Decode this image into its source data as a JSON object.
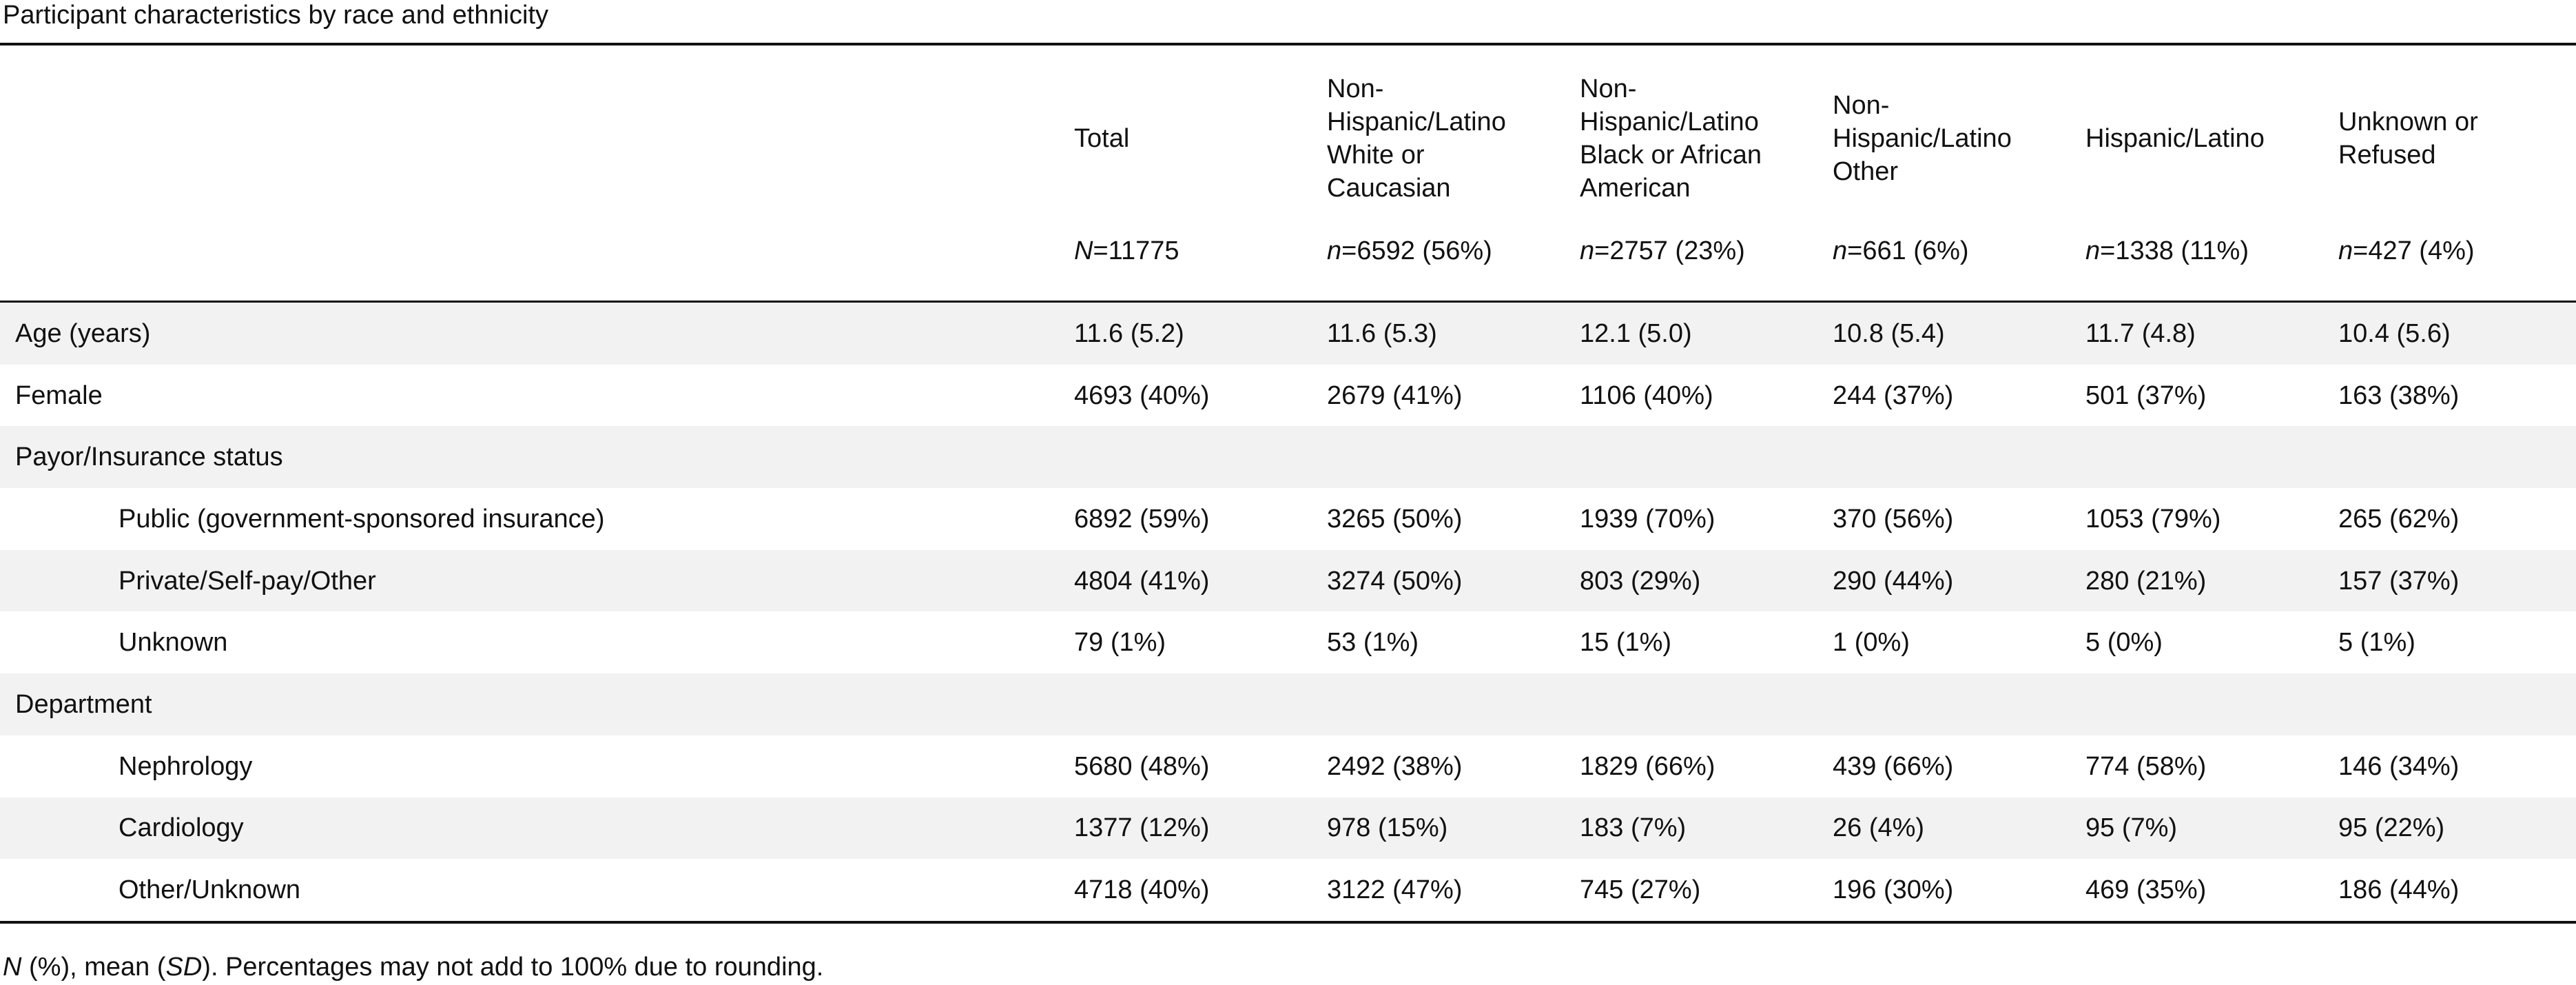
{
  "caption": "Participant characteristics by race and ethnicity",
  "columns": [
    {
      "label": "Total",
      "n_prefix": "N",
      "n_value": "=11775"
    },
    {
      "label": "Non-Hispanic/Latino White or Caucasian",
      "n_prefix": "n",
      "n_value": "=6592 (56%)"
    },
    {
      "label": "Non-Hispanic/Latino Black or African American",
      "n_prefix": "n",
      "n_value": "=2757 (23%)"
    },
    {
      "label": "Non-Hispanic/Latino Other",
      "n_prefix": "n",
      "n_value": "=661 (6%)"
    },
    {
      "label": "Hispanic/Latino",
      "n_prefix": "n",
      "n_value": "=1338 (11%)"
    },
    {
      "label": "Unknown or Refused",
      "n_prefix": "n",
      "n_value": "=427 (4%)"
    }
  ],
  "header_lines": [
    [
      "Total"
    ],
    [
      "Non-",
      "Hispanic/Latino",
      "White or",
      "Caucasian"
    ],
    [
      "Non-",
      "Hispanic/Latino",
      "Black or African",
      "American"
    ],
    [
      "Non-",
      "Hispanic/Latino",
      "Other"
    ],
    [
      "Hispanic/Latino"
    ],
    [
      "Unknown or",
      "Refused"
    ]
  ],
  "rows": [
    {
      "label": "Age (years)",
      "indent": false,
      "values": [
        "11.6 (5.2)",
        "11.6 (5.3)",
        "12.1 (5.0)",
        "10.8 (5.4)",
        "11.7 (4.8)",
        "10.4 (5.6)"
      ]
    },
    {
      "label": "Female",
      "indent": false,
      "values": [
        "4693 (40%)",
        "2679 (41%)",
        "1106 (40%)",
        "244 (37%)",
        "501 (37%)",
        "163 (38%)"
      ]
    },
    {
      "label": "Payor/Insurance status",
      "indent": false,
      "values": [
        "",
        "",
        "",
        "",
        "",
        ""
      ]
    },
    {
      "label": "Public (government-sponsored insurance)",
      "indent": true,
      "values": [
        "6892 (59%)",
        "3265 (50%)",
        "1939 (70%)",
        "370 (56%)",
        "1053 (79%)",
        "265 (62%)"
      ]
    },
    {
      "label": "Private/Self-pay/Other",
      "indent": true,
      "values": [
        "4804 (41%)",
        "3274 (50%)",
        "803 (29%)",
        "290 (44%)",
        "280 (21%)",
        "157 (37%)"
      ]
    },
    {
      "label": "Unknown",
      "indent": true,
      "values": [
        "79 (1%)",
        "53 (1%)",
        "15 (1%)",
        "1 (0%)",
        "5 (0%)",
        "5 (1%)"
      ]
    },
    {
      "label": "Department",
      "indent": false,
      "values": [
        "",
        "",
        "",
        "",
        "",
        ""
      ]
    },
    {
      "label": "Nephrology",
      "indent": true,
      "values": [
        "5680 (48%)",
        "2492 (38%)",
        "1829 (66%)",
        "439 (66%)",
        "774 (58%)",
        "146 (34%)"
      ]
    },
    {
      "label": "Cardiology",
      "indent": true,
      "values": [
        "1377 (12%)",
        "978 (15%)",
        "183 (7%)",
        "26 (4%)",
        "95 (7%)",
        "95 (22%)"
      ]
    },
    {
      "label": "Other/Unknown",
      "indent": true,
      "values": [
        "4718 (40%)",
        "3122 (47%)",
        "745 (27%)",
        "196 (30%)",
        "469 (35%)",
        "186 (44%)"
      ]
    }
  ],
  "footnote": {
    "part1_italic": "N",
    "part2": " (%), mean (",
    "part3_italic": "SD",
    "part4": "). Percentages may not add to 100% due to rounding."
  }
}
